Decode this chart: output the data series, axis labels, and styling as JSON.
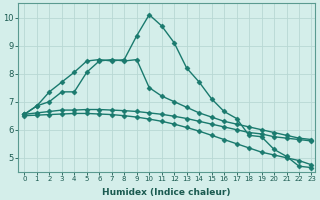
{
  "xlabel": "Humidex (Indice chaleur)",
  "xlim": [
    -0.5,
    23.3
  ],
  "ylim": [
    4.5,
    10.5
  ],
  "yticks": [
    5,
    6,
    7,
    8,
    9,
    10
  ],
  "xticks": [
    0,
    1,
    2,
    3,
    4,
    5,
    6,
    7,
    8,
    9,
    10,
    11,
    12,
    13,
    14,
    15,
    16,
    17,
    18,
    19,
    20,
    21,
    22,
    23
  ],
  "background_color": "#d4eeea",
  "grid_color": "#b8d8d4",
  "line_color": "#1a7a6e",
  "series": [
    {
      "x": [
        0,
        1,
        2,
        3,
        4,
        5,
        6,
        7,
        8,
        9,
        10,
        11,
        12,
        13,
        14,
        15,
        16,
        17,
        18,
        19,
        20,
        21,
        22,
        23
      ],
      "y": [
        6.55,
        6.85,
        7.35,
        7.7,
        8.05,
        8.45,
        8.5,
        8.45,
        8.5,
        9.35,
        10.1,
        9.7,
        9.1,
        8.2,
        7.7,
        7.1,
        6.65,
        6.4,
        5.8,
        5.75,
        5.3,
        5.05,
        4.7,
        4.65
      ],
      "marker": "D",
      "markersize": 2.5,
      "linewidth": 1.0
    },
    {
      "x": [
        0,
        1,
        2,
        3,
        4,
        5,
        6,
        7,
        8,
        9,
        10,
        11,
        12,
        13,
        14,
        15,
        16,
        17,
        18,
        19,
        20,
        21,
        22,
        23
      ],
      "y": [
        6.55,
        6.85,
        7.0,
        7.35,
        7.35,
        8.05,
        8.45,
        8.5,
        8.45,
        8.5,
        7.5,
        7.2,
        7.0,
        6.8,
        6.6,
        6.45,
        6.3,
        6.2,
        6.1,
        6.0,
        5.9,
        5.8,
        5.7,
        5.65
      ],
      "marker": "D",
      "markersize": 2.5,
      "linewidth": 1.0
    },
    {
      "x": [
        0,
        1,
        2,
        3,
        4,
        5,
        6,
        7,
        8,
        9,
        10,
        11,
        12,
        13,
        14,
        15,
        16,
        17,
        18,
        19,
        20,
        21,
        22,
        23
      ],
      "y": [
        6.55,
        6.6,
        6.65,
        6.7,
        6.7,
        6.72,
        6.72,
        6.7,
        6.68,
        6.65,
        6.6,
        6.55,
        6.48,
        6.4,
        6.3,
        6.2,
        6.1,
        6.0,
        5.9,
        5.85,
        5.75,
        5.7,
        5.65,
        5.6
      ],
      "marker": "D",
      "markersize": 2.5,
      "linewidth": 1.0
    },
    {
      "x": [
        0,
        1,
        2,
        3,
        4,
        5,
        6,
        7,
        8,
        9,
        10,
        11,
        12,
        13,
        14,
        15,
        16,
        17,
        18,
        19,
        20,
        21,
        22,
        23
      ],
      "y": [
        6.5,
        6.52,
        6.54,
        6.56,
        6.58,
        6.58,
        6.56,
        6.54,
        6.5,
        6.45,
        6.38,
        6.3,
        6.2,
        6.08,
        5.95,
        5.8,
        5.65,
        5.5,
        5.35,
        5.2,
        5.1,
        5.0,
        4.9,
        4.75
      ],
      "marker": "D",
      "markersize": 2.5,
      "linewidth": 1.0
    }
  ]
}
